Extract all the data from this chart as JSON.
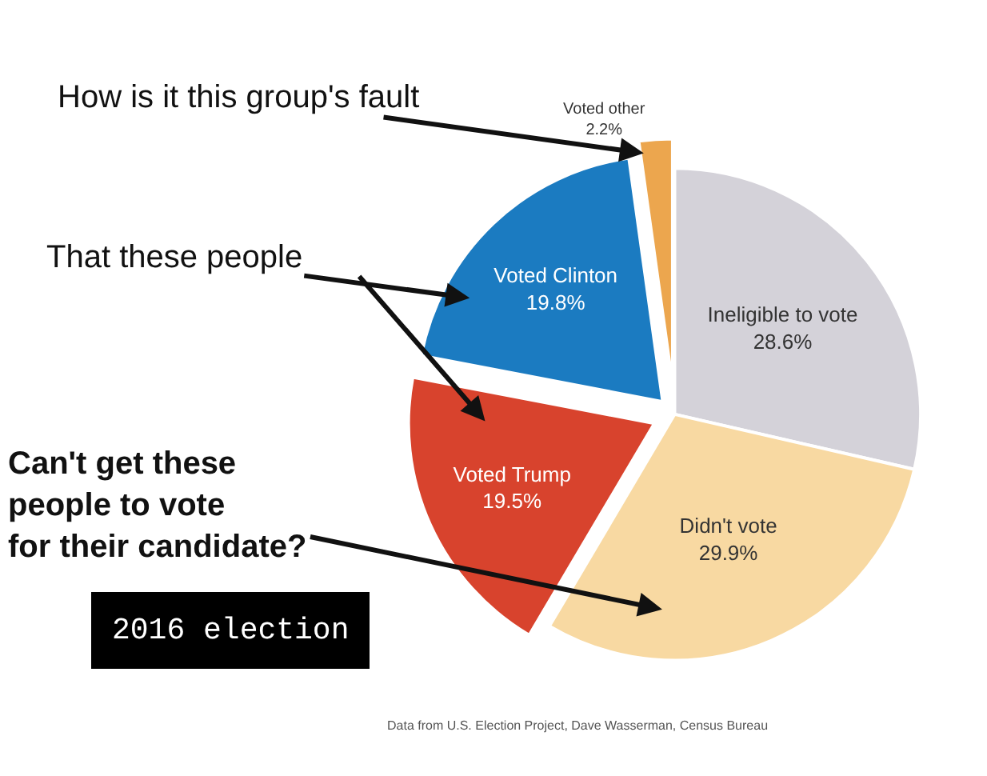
{
  "chart_data": {
    "type": "pie",
    "categories": [
      "Ineligible to vote",
      "Didn't vote",
      "Voted Trump",
      "Voted Clinton",
      "Voted other"
    ],
    "values": [
      28.6,
      29.9,
      19.5,
      19.8,
      2.2
    ],
    "value_labels": [
      "28.6%",
      "29.9%",
      "19.5%",
      "19.8%",
      "2.2%"
    ],
    "colors": [
      "#d4d2d9",
      "#f8d9a2",
      "#d8432d",
      "#1b7bc1",
      "#eca64e"
    ],
    "legend": false,
    "annotations": [
      "How is it this group's fault",
      "That these people",
      "Can't get these\npeople to vote\nfor their candidate?",
      "2016 election",
      "Data from U.S. Election Project, Dave Wasserman, Census Bureau"
    ]
  }
}
